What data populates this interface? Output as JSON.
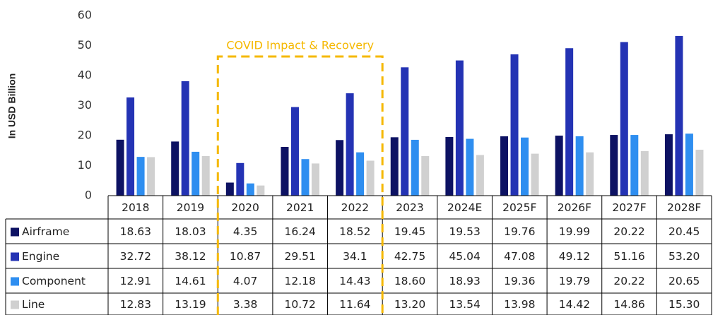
{
  "chart_data": {
    "type": "bar",
    "y_label": "In USD Billion",
    "annotation": "COVID Impact & Recovery",
    "categories": [
      "2018",
      "2019",
      "2020",
      "2021",
      "2022",
      "2023",
      "2024E",
      "2025F",
      "2026F",
      "2027F",
      "2028F"
    ],
    "series": [
      {
        "name": "Airframe",
        "color": "#0d1263",
        "values": [
          18.63,
          18.03,
          4.35,
          16.24,
          18.52,
          19.45,
          19.53,
          19.76,
          19.99,
          20.22,
          20.45
        ],
        "value_labels": [
          "18.63",
          "18.03",
          "4.35",
          "16.24",
          "18.52",
          "19.45",
          "19.53",
          "19.76",
          "19.99",
          "20.22",
          "20.45"
        ]
      },
      {
        "name": "Engine",
        "color": "#2433b4",
        "values": [
          32.72,
          38.12,
          10.87,
          29.51,
          34.1,
          42.75,
          45.04,
          47.08,
          49.12,
          51.16,
          53.2
        ],
        "value_labels": [
          "32.72",
          "38.12",
          "10.87",
          "29.51",
          "34.1",
          "42.75",
          "45.04",
          "47.08",
          "49.12",
          "51.16",
          "53.20"
        ]
      },
      {
        "name": "Component",
        "color": "#2e8ef0",
        "values": [
          12.91,
          14.61,
          4.07,
          12.18,
          14.43,
          18.6,
          18.93,
          19.36,
          19.79,
          20.22,
          20.65
        ],
        "value_labels": [
          "12.91",
          "14.61",
          "4.07",
          "12.18",
          "14.43",
          "18.60",
          "18.93",
          "19.36",
          "19.79",
          "20.22",
          "20.65"
        ]
      },
      {
        "name": "Line",
        "color": "#d0d0d0",
        "values": [
          12.83,
          13.19,
          3.38,
          10.72,
          11.64,
          13.2,
          13.54,
          13.98,
          14.42,
          14.86,
          15.3
        ],
        "value_labels": [
          "12.83",
          "13.19",
          "3.38",
          "10.72",
          "11.64",
          "13.20",
          "13.54",
          "13.98",
          "14.42",
          "14.86",
          "15.30"
        ]
      }
    ],
    "ylim": [
      0,
      60
    ],
    "yticks": [
      0,
      10,
      20,
      30,
      40,
      50,
      60
    ],
    "grid": false
  }
}
